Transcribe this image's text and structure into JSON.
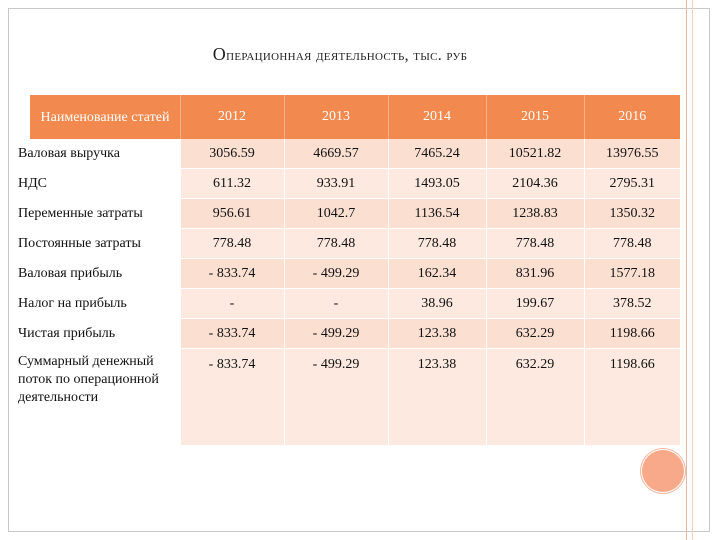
{
  "title": {
    "first_letter": "О",
    "rest": "перационная деятельность, тыс. руб"
  },
  "table": {
    "corner_label": "Наименование статей",
    "years": [
      "2012",
      "2013",
      "2014",
      "2015",
      "2016"
    ],
    "rows": [
      {
        "label": "Валовая выручка",
        "values": [
          "3056.59",
          "4669.57",
          "7465.24",
          "10521.82",
          "13976.55"
        ]
      },
      {
        "label": "НДС",
        "values": [
          "611.32",
          "933.91",
          "1493.05",
          "2104.36",
          "2795.31"
        ]
      },
      {
        "label": "Переменные затраты",
        "values": [
          "956.61",
          "1042.7",
          "1136.54",
          "1238.83",
          "1350.32"
        ]
      },
      {
        "label": "Постоянные затраты",
        "values": [
          "778.48",
          "778.48",
          "778.48",
          "778.48",
          "778.48"
        ]
      },
      {
        "label": "Валовая прибыль",
        "values": [
          "- 833.74",
          "- 499.29",
          "162.34",
          "831.96",
          "1577.18"
        ]
      },
      {
        "label": "Налог на прибыль",
        "values": [
          "-",
          "-",
          "38.96",
          "199.67",
          "378.52"
        ]
      },
      {
        "label": "Чистая прибыль",
        "values": [
          "- 833.74",
          "- 499.29",
          "123.38",
          "632.29",
          "1198.66"
        ]
      },
      {
        "label": "Суммарный денежный поток по операционной деятельности",
        "values": [
          "- 833.74",
          "- 499.29",
          "123.38",
          "632.29",
          "1198.66"
        ]
      }
    ]
  },
  "colors": {
    "header_accent": "#f28a4f",
    "cell_fill": "#fbe0d2",
    "decoration": "#f7a98a"
  }
}
